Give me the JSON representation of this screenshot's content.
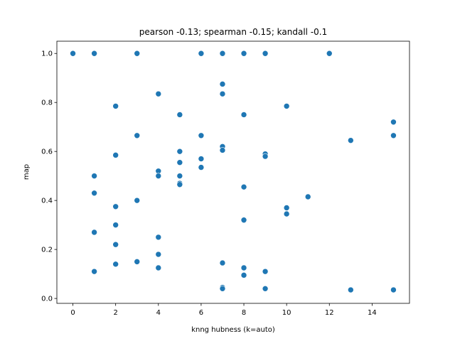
{
  "chart_data": {
    "type": "scatter",
    "title": "pearson -0.13; spearman -0.15; kandall -0.1",
    "xlabel": "knng hubness (k=auto)",
    "ylabel": "map",
    "xlim": [
      -0.75,
      15.75
    ],
    "ylim": [
      -0.02,
      1.05
    ],
    "xticks": [
      0,
      2,
      4,
      6,
      8,
      10,
      12,
      14
    ],
    "yticks": [
      0.0,
      0.2,
      0.4,
      0.6,
      0.8,
      1.0
    ],
    "xtick_labels": [
      "0",
      "2",
      "4",
      "6",
      "8",
      "10",
      "12",
      "14"
    ],
    "ytick_labels": [
      "0.0",
      "0.2",
      "0.4",
      "0.6",
      "0.8",
      "1.0"
    ],
    "grid": false,
    "marker_color": "#1f77b4",
    "x": [
      0,
      1,
      3,
      6,
      7,
      8,
      9,
      12,
      1,
      1,
      1,
      1,
      2,
      2,
      2,
      2,
      2,
      2,
      3,
      3,
      3,
      4,
      4,
      4,
      4,
      4,
      4,
      5,
      5,
      5,
      5,
      5,
      5,
      6,
      6,
      6,
      7,
      7,
      7,
      7,
      7,
      7,
      7,
      8,
      8,
      8,
      8,
      8,
      9,
      9,
      9,
      9,
      10,
      10,
      10,
      11,
      13,
      13,
      15,
      15,
      15
    ],
    "y": [
      1.0,
      1.0,
      1.0,
      1.0,
      1.0,
      1.0,
      1.0,
      1.0,
      0.5,
      0.43,
      0.27,
      0.11,
      0.785,
      0.585,
      0.375,
      0.3,
      0.22,
      0.14,
      0.665,
      0.4,
      0.15,
      0.835,
      0.52,
      0.5,
      0.25,
      0.18,
      0.125,
      0.75,
      0.6,
      0.555,
      0.5,
      0.47,
      0.465,
      0.665,
      0.57,
      0.535,
      0.875,
      0.835,
      0.62,
      0.605,
      0.145,
      0.045,
      0.04,
      0.75,
      0.455,
      0.32,
      0.125,
      0.095,
      0.59,
      0.58,
      0.11,
      0.04,
      0.785,
      0.37,
      0.345,
      0.415,
      0.645,
      0.035,
      0.72,
      0.665,
      0.035
    ]
  }
}
